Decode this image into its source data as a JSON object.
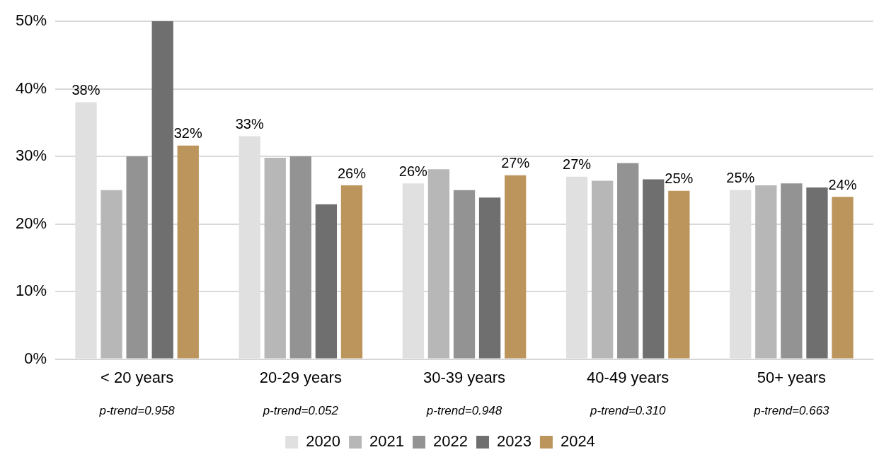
{
  "chart_data": {
    "type": "bar",
    "categories": [
      "< 20 years",
      "20-29 years",
      "30-39 years",
      "40-49 years",
      "50+ years"
    ],
    "series": [
      {
        "name": "2020",
        "color": "#e0e0e0",
        "values": [
          38,
          33,
          26,
          27,
          25
        ],
        "value_labels": [
          "38%",
          "33%",
          "26%",
          "27%",
          "25%"
        ]
      },
      {
        "name": "2021",
        "color": "#b7b7b7",
        "values": [
          25,
          29.8,
          28.1,
          26.4,
          25.7
        ]
      },
      {
        "name": "2022",
        "color": "#939393",
        "values": [
          30,
          30,
          25,
          29,
          26
        ]
      },
      {
        "name": "2023",
        "color": "#6f6f6f",
        "values": [
          50,
          22.9,
          23.9,
          26.6,
          25.4
        ]
      },
      {
        "name": "2024",
        "color": "#bc955c",
        "values": [
          31.6,
          25.7,
          27.2,
          24.9,
          24
        ],
        "value_labels": [
          "32%",
          "26%",
          "27%",
          "25%",
          "24%"
        ]
      }
    ],
    "ylim": [
      0,
      50
    ],
    "yticks": [
      {
        "value": 0,
        "label": "0%"
      },
      {
        "value": 10,
        "label": "10%"
      },
      {
        "value": 20,
        "label": "20%"
      },
      {
        "value": 30,
        "label": "30%"
      },
      {
        "value": 40,
        "label": "40%"
      },
      {
        "value": 50,
        "label": "50%"
      }
    ],
    "grid": "y",
    "legend": "bottom",
    "annotations": [
      "p-trend=0.958",
      "p-trend=0.052",
      "p-trend=0.948",
      "p-trend=0.310",
      "p-trend=0.663"
    ]
  }
}
